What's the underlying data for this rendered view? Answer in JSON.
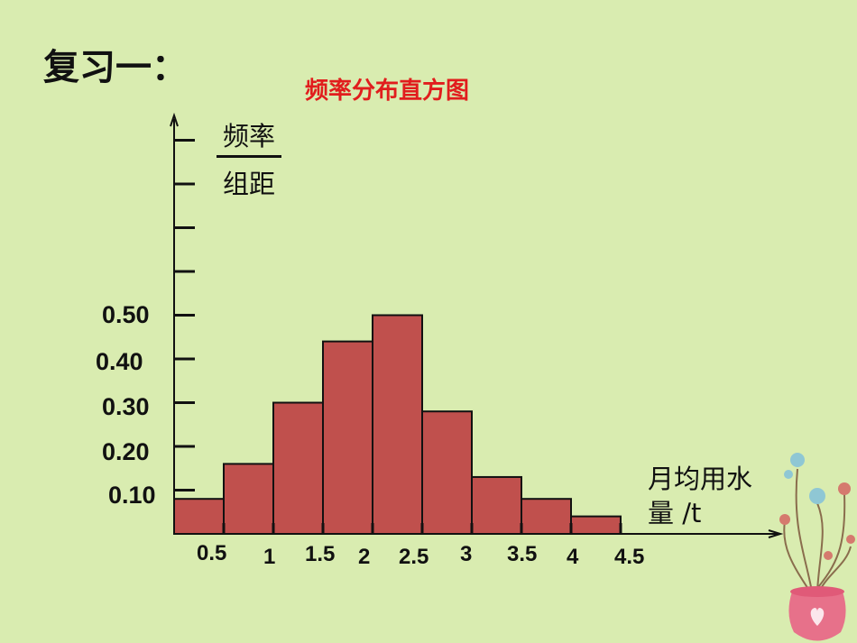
{
  "heading": "复习一：",
  "chart_data": {
    "type": "bar",
    "title": "频率分布直方图",
    "ylabel_numerator": "频率",
    "ylabel_denominator": "组距",
    "xlabel_line1": "月均用水",
    "xlabel_line2": "量 /t",
    "x_tick_labels": [
      "0.5",
      "1",
      "1.5",
      "2",
      "2.5",
      "3",
      "3.5",
      "4",
      "4.5"
    ],
    "y_tick_labels": [
      "0.10",
      "0.20",
      "0.30",
      "0.40",
      "0.50"
    ],
    "bins": [
      {
        "start": 0,
        "end": 0.5,
        "value": 0.08
      },
      {
        "start": 0.5,
        "end": 1.0,
        "value": 0.16
      },
      {
        "start": 1.0,
        "end": 1.5,
        "value": 0.3
      },
      {
        "start": 1.5,
        "end": 2.0,
        "value": 0.44
      },
      {
        "start": 2.0,
        "end": 2.5,
        "value": 0.5
      },
      {
        "start": 2.5,
        "end": 3.0,
        "value": 0.28
      },
      {
        "start": 3.0,
        "end": 3.5,
        "value": 0.13
      },
      {
        "start": 3.5,
        "end": 4.0,
        "value": 0.08
      },
      {
        "start": 4.0,
        "end": 4.5,
        "value": 0.04
      }
    ],
    "ylim": [
      0,
      0.9
    ],
    "xlim": [
      0,
      4.5
    ],
    "grid": false,
    "colors": {
      "bar_fill": "#c0504d",
      "bar_stroke": "#111111",
      "title": "#e11d1d",
      "background": "#d9ecb0"
    }
  }
}
